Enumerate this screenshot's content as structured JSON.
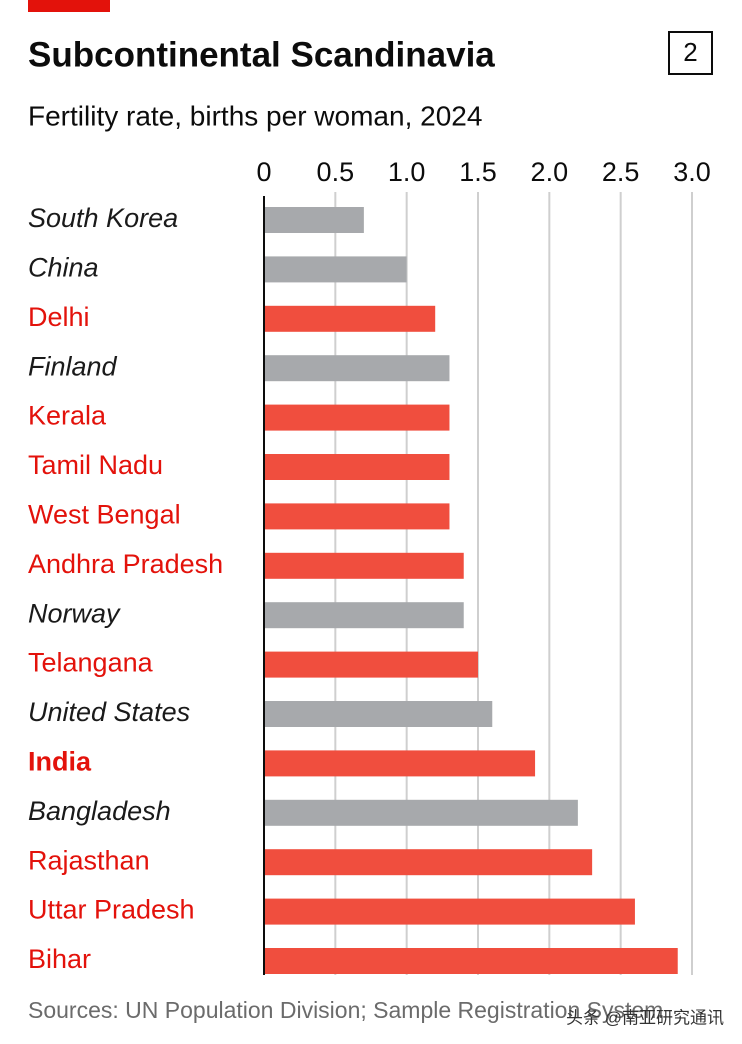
{
  "chart_data": {
    "type": "bar",
    "orientation": "horizontal",
    "title": "Subcontinental Scandinavia",
    "chart_number": "2",
    "subtitle": "Fertility rate, births per woman, 2024",
    "source": "Sources: UN Population Division; Sample Registration System",
    "watermark": "头条 @南亚研究通讯",
    "categories": [
      "South Korea",
      "China",
      "Delhi",
      "Finland",
      "Kerala",
      "Tamil Nadu",
      "West Bengal",
      "Andhra Pradesh",
      "Norway",
      "Telangana",
      "United States",
      "India",
      "Bangladesh",
      "Rajasthan",
      "Uttar Pradesh",
      "Bihar"
    ],
    "values": [
      0.7,
      1.0,
      1.2,
      1.3,
      1.3,
      1.3,
      1.3,
      1.4,
      1.4,
      1.5,
      1.6,
      1.9,
      2.2,
      2.3,
      2.6,
      2.9
    ],
    "bar_colors": [
      "#a7a9ac",
      "#a7a9ac",
      "#f04e3e",
      "#a7a9ac",
      "#f04e3e",
      "#f04e3e",
      "#f04e3e",
      "#f04e3e",
      "#a7a9ac",
      "#f04e3e",
      "#a7a9ac",
      "#f04e3e",
      "#a7a9ac",
      "#f04e3e",
      "#f04e3e",
      "#f04e3e"
    ],
    "highlight_index": 11,
    "xlim": [
      0,
      3.0
    ],
    "xticks": [
      0,
      0.5,
      {
        "value": 1.0,
        "label": "1.0"
      },
      1.5,
      {
        "value": 2.0,
        "label": "2.0"
      },
      2.5,
      {
        "value": 3.0,
        "label": "3.0"
      }
    ],
    "grid": true
  }
}
